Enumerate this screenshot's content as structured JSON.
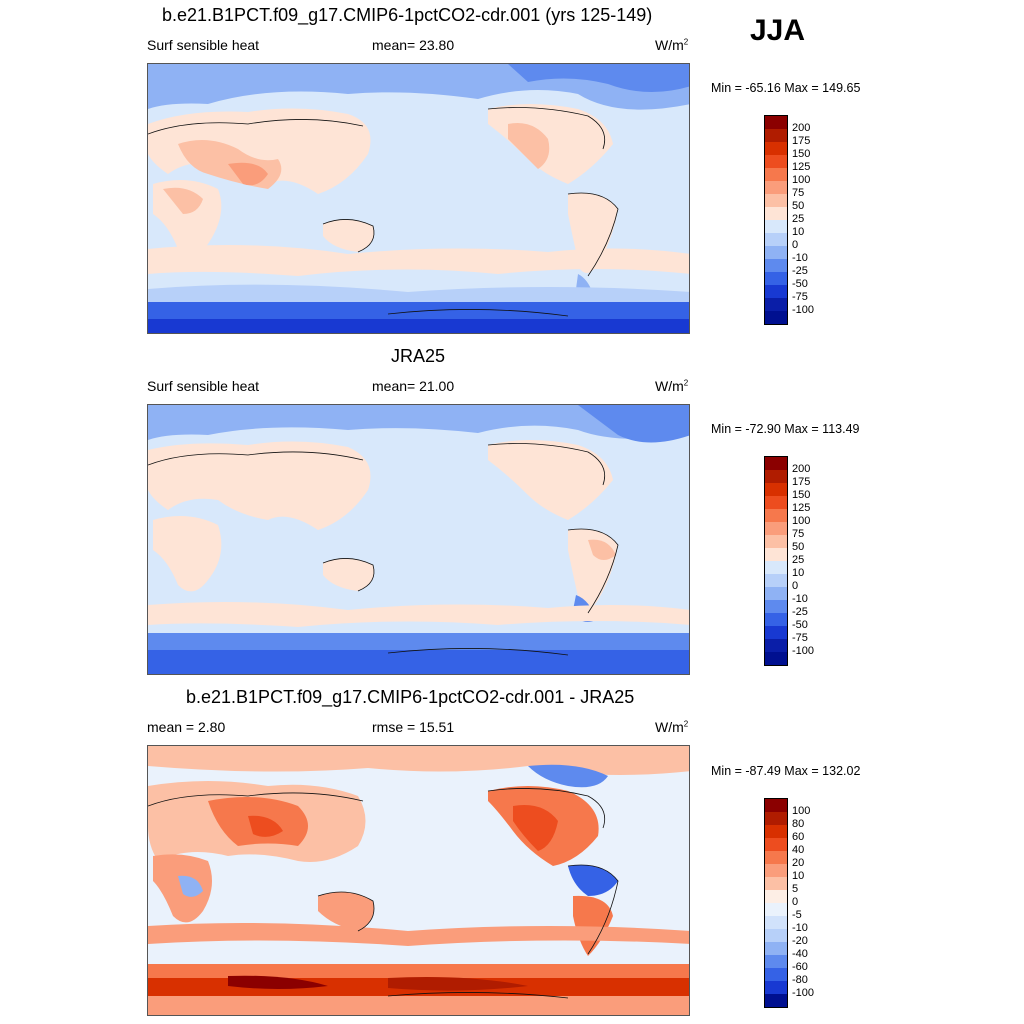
{
  "season": "JJA",
  "panels": [
    {
      "title": "b.e21.B1PCT.f09_g17.CMIP6-1pctCO2-cdr.001 (yrs 125-149)",
      "left_label": "Surf sensible heat",
      "mid_label": "mean=  23.80",
      "units": "W/m",
      "units_sup": "2",
      "minmax": "Min = -65.16 Max = 149.65"
    },
    {
      "title": "JRA25",
      "left_label": "Surf sensible heat",
      "mid_label": "mean=  21.00",
      "units": "W/m",
      "units_sup": "2",
      "minmax": "Min = -72.90 Max = 113.49"
    },
    {
      "title": "b.e21.B1PCT.f09_g17.CMIP6-1pctCO2-cdr.001 - JRA25",
      "left_label": "mean =   2.80",
      "mid_label": "rmse =  15.51",
      "units": "W/m",
      "units_sup": "2",
      "minmax": "Min = -87.49 Max = 132.02"
    }
  ],
  "colorbar_main": {
    "labels": [
      "200",
      "175",
      "150",
      "125",
      "100",
      "75",
      "50",
      "25",
      "10",
      "0",
      "-10",
      "-25",
      "-50",
      "-75",
      "-100"
    ],
    "colors": [
      "#8b0000",
      "#b01c00",
      "#d83000",
      "#ed4d1f",
      "#f6784c",
      "#fa9d7b",
      "#fcc0a5",
      "#fee4d6",
      "#d8e8fb",
      "#b7d0f9",
      "#8fb2f4",
      "#5e8aee",
      "#3562e6",
      "#1839d2",
      "#0a1ea8",
      "#001090"
    ]
  },
  "colorbar_diff": {
    "labels": [
      "100",
      "80",
      "60",
      "40",
      "20",
      "10",
      "5",
      "0",
      "-5",
      "-10",
      "-20",
      "-40",
      "-60",
      "-80",
      "-100"
    ],
    "colors": [
      "#8b0000",
      "#b01c00",
      "#d83000",
      "#ed4d1f",
      "#f6784c",
      "#fa9d7b",
      "#fcc0a5",
      "#fdeee5",
      "#eaf2fc",
      "#d1e2fb",
      "#b7d0f9",
      "#8fb2f4",
      "#5e8aee",
      "#3562e6",
      "#1839d2",
      "#001090"
    ]
  }
}
